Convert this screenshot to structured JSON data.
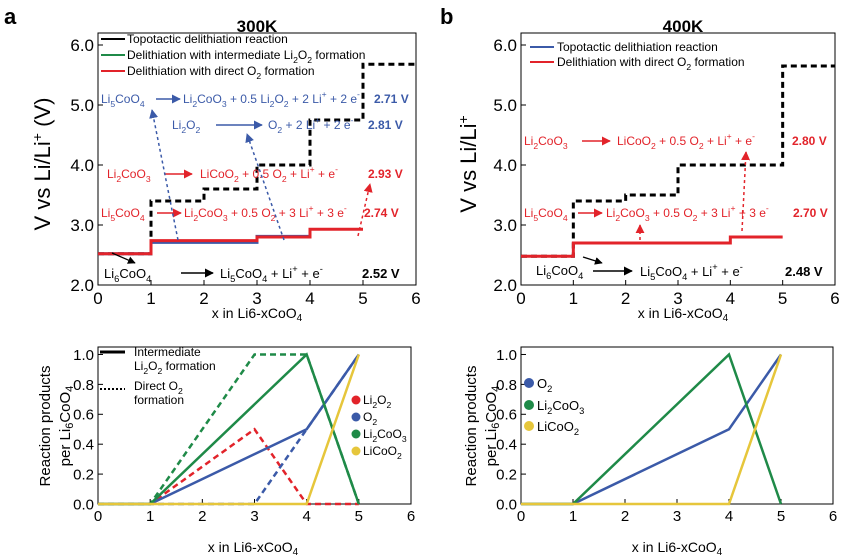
{
  "colors": {
    "black": "#000000",
    "blue": "#3b5aa8",
    "red": "#e2232a",
    "green": "#1f8a48",
    "yellow": "#e6c63b"
  },
  "chart_data": [
    {
      "id": "a-top",
      "type": "line",
      "panel_label": "a",
      "title": "300K",
      "xlabel": "x in Li6-xCoO4",
      "ylabel": "V vs Li/Li+",
      "xlim": [
        0,
        6
      ],
      "ylim": [
        2.0,
        6.2
      ],
      "xticks": [
        0,
        1,
        2,
        3,
        4,
        5,
        6
      ],
      "yticks": [
        2.0,
        3.0,
        4.0,
        5.0,
        6.0
      ],
      "legend": [
        "Topotactic delithiation reaction",
        "Delithiation with intermediate Li2O2 formation",
        "Delithiation with direct O2 formation"
      ],
      "series": [
        {
          "name": "Topotactic delithiation reaction",
          "color": "#000000",
          "style": "dashed",
          "x": [
            0,
            1,
            1,
            2,
            2,
            3,
            3,
            4,
            4,
            5,
            5,
            6
          ],
          "y": [
            2.52,
            2.52,
            3.4,
            3.4,
            3.6,
            3.6,
            4.0,
            4.0,
            4.75,
            4.75,
            5.68,
            5.68
          ]
        },
        {
          "name": "Delithiation with intermediate Li2O2 formation",
          "color": "#3b5aa8",
          "style": "solid",
          "x": [
            0,
            1,
            1,
            3,
            3,
            4
          ],
          "y": [
            2.52,
            2.52,
            2.71,
            2.71,
            2.81,
            2.81
          ]
        },
        {
          "name": "Delithiation with direct O2 formation",
          "color": "#e2232a",
          "style": "solid",
          "x": [
            0,
            1,
            1,
            3,
            3,
            4,
            4,
            5
          ],
          "y": [
            2.52,
            2.52,
            2.74,
            2.74,
            2.8,
            2.8,
            2.93,
            2.93
          ]
        }
      ],
      "annotations": [
        {
          "text": "Li5CoO4 → Li2CoO3 + 0.5 Li2O2 + 2 Li+ + 2 e-",
          "value": "2.71 V",
          "color": "#3b5aa8"
        },
        {
          "text": "Li2O2 → O2 + 2 Li+ + 2 e-",
          "value": "2.81 V",
          "color": "#3b5aa8"
        },
        {
          "text": "Li2CoO3 → LiCoO2 + 0.5 O2 + Li+ + e-",
          "value": "2.93 V",
          "color": "#e2232a"
        },
        {
          "text": "Li5CoO4 → Li2CoO3 + 0.5 O2 + 3 Li+ + 3 e-",
          "value": "2.74 V",
          "color": "#e2232a"
        },
        {
          "text": "Li6CoO4 → Li5CoO4 + Li+ + e-",
          "value": "2.52 V",
          "color": "#000000"
        }
      ]
    },
    {
      "id": "b-top",
      "type": "line",
      "panel_label": "b",
      "title": "400K",
      "xlabel": "x in Li6-xCoO4",
      "ylabel": "V vs Li/Li+",
      "xlim": [
        0,
        6
      ],
      "ylim": [
        2.0,
        6.2
      ],
      "xticks": [
        0,
        1,
        2,
        3,
        4,
        5,
        6
      ],
      "yticks": [
        2.0,
        3.0,
        4.0,
        5.0,
        6.0
      ],
      "legend": [
        "Topotactic delithiation reaction",
        "Delithiation with direct O2 formation"
      ],
      "series": [
        {
          "name": "Topotactic delithiation reaction",
          "color": "#000000",
          "style": "dashed",
          "x": [
            0,
            1,
            1,
            2,
            2,
            3,
            3,
            4,
            4,
            5,
            5,
            6
          ],
          "y": [
            2.48,
            2.48,
            3.4,
            3.4,
            3.5,
            3.5,
            4.0,
            4.0,
            4.0,
            4.0,
            5.65,
            5.65
          ]
        },
        {
          "name": "Delithiation with direct O2 formation",
          "color": "#e2232a",
          "style": "solid",
          "x": [
            0,
            1,
            1,
            4,
            4,
            5
          ],
          "y": [
            2.48,
            2.48,
            2.7,
            2.7,
            2.8,
            2.8
          ]
        }
      ],
      "annotations": [
        {
          "text": "Li2CoO3 → LiCoO2 + 0.5 O2 + Li+ + e-",
          "value": "2.80 V",
          "color": "#e2232a"
        },
        {
          "text": "Li5CoO4 → Li2CoO3 + 0.5 O2 + 3 Li+ + 3 e-",
          "value": "2.70 V",
          "color": "#e2232a"
        },
        {
          "text": "Li6CoO4 → Li5CoO4 + Li+ + e-",
          "value": "2.48 V",
          "color": "#000000"
        }
      ]
    },
    {
      "id": "a-bottom",
      "type": "line",
      "xlabel": "x in Li6-xCoO4",
      "ylabel": "Reaction products per Li6CoO4",
      "xlim": [
        0,
        6
      ],
      "ylim": [
        0,
        1.05
      ],
      "xticks": [
        0,
        1,
        2,
        3,
        4,
        5,
        6
      ],
      "yticks": [
        0.0,
        0.2,
        0.4,
        0.6,
        0.8,
        1.0
      ],
      "style_legend": [
        "Intermediate Li2O2 formation",
        "Direct O2 formation"
      ],
      "legend": [
        "Li2O2",
        "O2",
        "Li2CoO3",
        "LiCoO2"
      ],
      "series": [
        {
          "name": "Li2O2",
          "color": "#e2232a",
          "style": "dashed",
          "x": [
            0,
            1,
            3,
            4,
            5
          ],
          "y": [
            0,
            0,
            0.5,
            0,
            0
          ]
        },
        {
          "name": "O2",
          "color": "#3b5aa8",
          "style": "dashed",
          "x": [
            0,
            3,
            4,
            5
          ],
          "y": [
            0,
            0,
            0.5,
            1.0
          ]
        },
        {
          "name": "Li2CoO3",
          "color": "#1f8a48",
          "style": "dashed",
          "x": [
            0,
            1,
            3,
            4,
            5
          ],
          "y": [
            0,
            0,
            1.0,
            1.0,
            0
          ]
        },
        {
          "name": "O2",
          "color": "#3b5aa8",
          "style": "solid",
          "x": [
            0,
            1,
            4,
            5
          ],
          "y": [
            0,
            0,
            0.5,
            1.0
          ]
        },
        {
          "name": "Li2CoO3",
          "color": "#1f8a48",
          "style": "solid",
          "x": [
            0,
            1,
            4,
            5
          ],
          "y": [
            0,
            0,
            1.0,
            0
          ]
        },
        {
          "name": "LiCoO2",
          "color": "#e6c63b",
          "style": "solid",
          "x": [
            0,
            4,
            5
          ],
          "y": [
            0,
            0,
            1.0
          ]
        }
      ]
    },
    {
      "id": "b-bottom",
      "type": "line",
      "xlabel": "x in Li6-xCoO4",
      "ylabel": "Reaction products per Li6CoO4",
      "xlim": [
        0,
        6
      ],
      "ylim": [
        0,
        1.05
      ],
      "xticks": [
        0,
        1,
        2,
        3,
        4,
        5,
        6
      ],
      "yticks": [
        0.0,
        0.2,
        0.4,
        0.6,
        0.8,
        1.0
      ],
      "legend": [
        "O2",
        "Li2CoO3",
        "LiCoO2"
      ],
      "series": [
        {
          "name": "O2",
          "color": "#3b5aa8",
          "style": "solid",
          "x": [
            0,
            1,
            4,
            5
          ],
          "y": [
            0,
            0,
            0.5,
            1.0
          ]
        },
        {
          "name": "Li2CoO3",
          "color": "#1f8a48",
          "style": "solid",
          "x": [
            0,
            1,
            4,
            5
          ],
          "y": [
            0,
            0,
            1.0,
            0
          ]
        },
        {
          "name": "LiCoO2",
          "color": "#e6c63b",
          "style": "solid",
          "x": [
            0,
            4,
            5
          ],
          "y": [
            0,
            0,
            1.0
          ]
        }
      ]
    }
  ]
}
